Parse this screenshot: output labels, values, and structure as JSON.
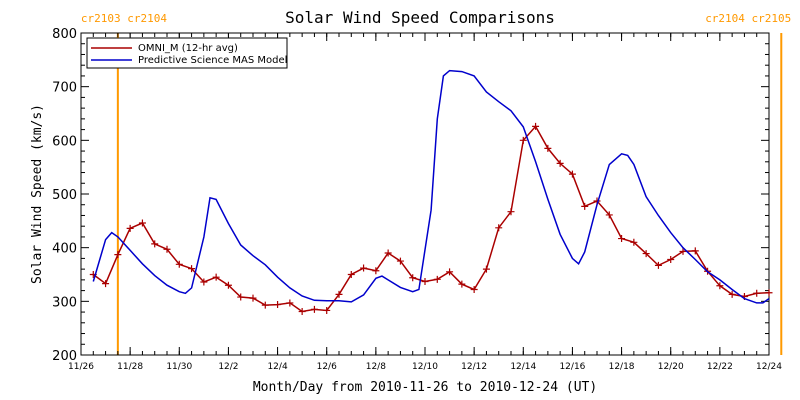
{
  "chart_data": {
    "type": "line",
    "title": "Solar Wind Speed Comparisons",
    "xlabel": "Month/Day from 2010-11-26 to 2010-12-24 (UT)",
    "ylabel": "Solar Wind Speed (km/s)",
    "xlim": [
      "2010-11-26",
      "2010-12-24"
    ],
    "ylim": [
      200,
      800
    ],
    "y_ticks": [
      200,
      300,
      400,
      500,
      600,
      700,
      800
    ],
    "x_ticks": [
      {
        "date": "2010-11-26",
        "label": "11/26"
      },
      {
        "date": "2010-11-28",
        "label": "11/28"
      },
      {
        "date": "2010-11-30",
        "label": "11/30"
      },
      {
        "date": "2010-12-02",
        "label": "12/2"
      },
      {
        "date": "2010-12-04",
        "label": "12/4"
      },
      {
        "date": "2010-12-06",
        "label": "12/6"
      },
      {
        "date": "2010-12-08",
        "label": "12/8"
      },
      {
        "date": "2010-12-10",
        "label": "12/10"
      },
      {
        "date": "2010-12-12",
        "label": "12/12"
      },
      {
        "date": "2010-12-14",
        "label": "12/14"
      },
      {
        "date": "2010-12-16",
        "label": "12/16"
      },
      {
        "date": "2010-12-18",
        "label": "12/18"
      },
      {
        "date": "2010-12-20",
        "label": "12/20"
      },
      {
        "date": "2010-12-22",
        "label": "12/22"
      },
      {
        "date": "2010-12-24",
        "label": "12/24"
      }
    ],
    "legend_position": "top-left",
    "grid": false,
    "carrington_markers": [
      {
        "date": "2010-11-27 12:00",
        "label": "cr2103 cr2104",
        "align": "left"
      },
      {
        "date": "2010-12-24 12:00",
        "label": "cr2104 cr2105",
        "align": "right"
      }
    ],
    "series": [
      {
        "name": "OMNI_M (12-hr avg)",
        "color": "#aa0000",
        "marker": "plus",
        "points": [
          [
            "2010-11-26 12:00",
            350
          ],
          [
            "2010-11-27 00:00",
            333
          ],
          [
            "2010-11-27 12:00",
            387
          ],
          [
            "2010-11-28 00:00",
            436
          ],
          [
            "2010-11-28 12:00",
            446
          ],
          [
            "2010-11-29 00:00",
            407
          ],
          [
            "2010-11-29 12:00",
            397
          ],
          [
            "2010-11-30 00:00",
            369
          ],
          [
            "2010-11-30 12:00",
            361
          ],
          [
            "2010-12-01 00:00",
            336
          ],
          [
            "2010-12-01 12:00",
            345
          ],
          [
            "2010-12-02 00:00",
            330
          ],
          [
            "2010-12-02 12:00",
            308
          ],
          [
            "2010-12-03 00:00",
            306
          ],
          [
            "2010-12-03 12:00",
            293
          ],
          [
            "2010-12-04 00:00",
            294
          ],
          [
            "2010-12-04 12:00",
            297
          ],
          [
            "2010-12-05 00:00",
            281
          ],
          [
            "2010-12-05 12:00",
            285
          ],
          [
            "2010-12-06 00:00",
            283
          ],
          [
            "2010-12-06 12:00",
            313
          ],
          [
            "2010-12-07 00:00",
            350
          ],
          [
            "2010-12-07 12:00",
            362
          ],
          [
            "2010-12-08 00:00",
            357
          ],
          [
            "2010-12-08 12:00",
            390
          ],
          [
            "2010-12-09 00:00",
            375
          ],
          [
            "2010-12-09 12:00",
            344
          ],
          [
            "2010-12-10 00:00",
            337
          ],
          [
            "2010-12-10 12:00",
            341
          ],
          [
            "2010-12-11 00:00",
            355
          ],
          [
            "2010-12-11 12:00",
            332
          ],
          [
            "2010-12-12 00:00",
            322
          ],
          [
            "2010-12-12 12:00",
            360
          ],
          [
            "2010-12-13 00:00",
            437
          ],
          [
            "2010-12-13 12:00",
            467
          ],
          [
            "2010-12-14 00:00",
            600
          ],
          [
            "2010-12-14 12:00",
            626
          ],
          [
            "2010-12-15 00:00",
            585
          ],
          [
            "2010-12-15 12:00",
            557
          ],
          [
            "2010-12-16 00:00",
            537
          ],
          [
            "2010-12-16 12:00",
            477
          ],
          [
            "2010-12-17 00:00",
            487
          ],
          [
            "2010-12-17 12:00",
            461
          ],
          [
            "2010-12-18 00:00",
            417
          ],
          [
            "2010-12-18 12:00",
            410
          ],
          [
            "2010-12-19 00:00",
            389
          ],
          [
            "2010-12-19 12:00",
            367
          ],
          [
            "2010-12-20 00:00",
            378
          ],
          [
            "2010-12-20 12:00",
            393
          ],
          [
            "2010-12-21 00:00",
            394
          ],
          [
            "2010-12-21 12:00",
            356
          ],
          [
            "2010-12-22 00:00",
            329
          ],
          [
            "2010-12-22 12:00",
            313
          ],
          [
            "2010-12-23 00:00",
            309
          ],
          [
            "2010-12-23 12:00",
            315
          ],
          [
            "2010-12-24 00:00",
            316
          ]
        ]
      },
      {
        "name": "Predictive Science MAS Model",
        "color": "#0000cc",
        "marker": "none",
        "points": [
          [
            "2010-11-26 12:00",
            337
          ],
          [
            "2010-11-27 00:00",
            415
          ],
          [
            "2010-11-27 06:00",
            428
          ],
          [
            "2010-11-27 12:00",
            420
          ],
          [
            "2010-11-28 00:00",
            395
          ],
          [
            "2010-11-28 12:00",
            370
          ],
          [
            "2010-11-29 00:00",
            348
          ],
          [
            "2010-11-29 12:00",
            330
          ],
          [
            "2010-11-30 00:00",
            318
          ],
          [
            "2010-11-30 06:00",
            315
          ],
          [
            "2010-11-30 12:00",
            325
          ],
          [
            "2010-12-01 00:00",
            420
          ],
          [
            "2010-12-01 06:00",
            493
          ],
          [
            "2010-12-01 12:00",
            490
          ],
          [
            "2010-12-02 00:00",
            445
          ],
          [
            "2010-12-02 12:00",
            405
          ],
          [
            "2010-12-03 00:00",
            385
          ],
          [
            "2010-12-03 12:00",
            368
          ],
          [
            "2010-12-04 00:00",
            345
          ],
          [
            "2010-12-04 12:00",
            325
          ],
          [
            "2010-12-05 00:00",
            310
          ],
          [
            "2010-12-05 12:00",
            302
          ],
          [
            "2010-12-06 00:00",
            301
          ],
          [
            "2010-12-06 12:00",
            301
          ],
          [
            "2010-12-07 00:00",
            299
          ],
          [
            "2010-12-07 12:00",
            312
          ],
          [
            "2010-12-08 00:00",
            343
          ],
          [
            "2010-12-08 06:00",
            347
          ],
          [
            "2010-12-08 12:00",
            340
          ],
          [
            "2010-12-09 00:00",
            326
          ],
          [
            "2010-12-09 12:00",
            318
          ],
          [
            "2010-12-09 18:00",
            322
          ],
          [
            "2010-12-10 06:00",
            470
          ],
          [
            "2010-12-10 12:00",
            640
          ],
          [
            "2010-12-10 18:00",
            720
          ],
          [
            "2010-12-11 00:00",
            730
          ],
          [
            "2010-12-11 12:00",
            728
          ],
          [
            "2010-12-12 00:00",
            720
          ],
          [
            "2010-12-12 12:00",
            690
          ],
          [
            "2010-12-13 00:00",
            672
          ],
          [
            "2010-12-13 12:00",
            655
          ],
          [
            "2010-12-14 00:00",
            625
          ],
          [
            "2010-12-14 12:00",
            560
          ],
          [
            "2010-12-15 00:00",
            490
          ],
          [
            "2010-12-15 12:00",
            425
          ],
          [
            "2010-12-16 00:00",
            380
          ],
          [
            "2010-12-16 06:00",
            370
          ],
          [
            "2010-12-16 12:00",
            392
          ],
          [
            "2010-12-17 00:00",
            480
          ],
          [
            "2010-12-17 12:00",
            555
          ],
          [
            "2010-12-18 00:00",
            575
          ],
          [
            "2010-12-18 06:00",
            572
          ],
          [
            "2010-12-18 12:00",
            555
          ],
          [
            "2010-12-19 00:00",
            495
          ],
          [
            "2010-12-19 12:00",
            460
          ],
          [
            "2010-12-20 00:00",
            428
          ],
          [
            "2010-12-20 12:00",
            400
          ],
          [
            "2010-12-21 00:00",
            378
          ],
          [
            "2010-12-21 12:00",
            355
          ],
          [
            "2010-12-22 00:00",
            340
          ],
          [
            "2010-12-22 12:00",
            322
          ],
          [
            "2010-12-23 00:00",
            305
          ],
          [
            "2010-12-23 12:00",
            297
          ],
          [
            "2010-12-23 18:00",
            297
          ],
          [
            "2010-12-24 00:00",
            305
          ]
        ]
      }
    ]
  }
}
